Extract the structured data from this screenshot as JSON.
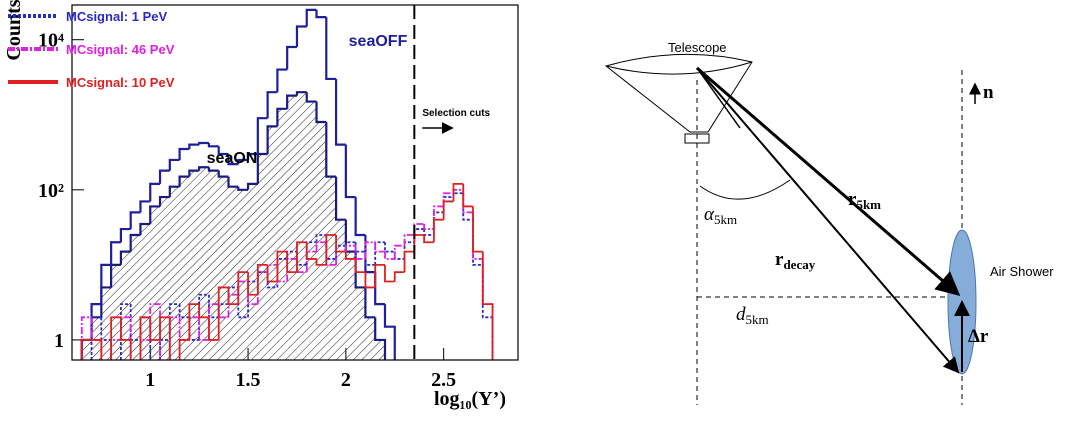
{
  "chart_data": {
    "type": "histogram",
    "xlabel": "log₁₀(Y’)",
    "ylabel": "Counts",
    "log_y": true,
    "xlim": [
      0.6,
      2.88
    ],
    "ylim": [
      0.54,
      29000
    ],
    "xticks": [
      1,
      1.5,
      2,
      2.5
    ],
    "yticks": [
      1,
      {
        "value": 100,
        "label": "10²"
      },
      {
        "value": 10000,
        "label": "10⁴"
      }
    ],
    "bins": [
      0.6,
      0.65,
      0.7,
      0.75,
      0.8,
      0.85,
      0.9,
      0.95,
      1,
      1.05,
      1.1,
      1.15,
      1.2,
      1.25,
      1.3,
      1.35,
      1.4,
      1.45,
      1.5,
      1.55,
      1.6,
      1.65,
      1.7,
      1.75,
      1.8,
      1.85,
      1.9,
      1.95,
      2,
      2.05,
      2.1,
      2.15,
      2.2,
      2.25,
      2.3,
      2.35,
      2.4,
      2.45,
      2.5,
      2.55,
      2.6,
      2.65,
      2.7,
      2.75,
      2.8,
      2.85
    ],
    "cut": {
      "x": 2.35,
      "label": "Selection cuts"
    },
    "series": [
      {
        "name": "seaON",
        "color": "#1a1a80",
        "hatched": true,
        "in_legend": false,
        "values": [
          null,
          1,
          2,
          5,
          10,
          15,
          25,
          35,
          60,
          80,
          110,
          150,
          180,
          200,
          180,
          150,
          110,
          100,
          120,
          300,
          700,
          1200,
          1800,
          2000,
          1500,
          800,
          150,
          40,
          15,
          5,
          2,
          1,
          null,
          null,
          null,
          null,
          null,
          null,
          null,
          null,
          null,
          null,
          null,
          null,
          null
        ]
      },
      {
        "name": "seaOFF",
        "color": "#1f1f9e",
        "in_legend": false,
        "values": [
          null,
          1,
          3,
          10,
          20,
          30,
          50,
          70,
          120,
          180,
          250,
          350,
          400,
          420,
          380,
          300,
          220,
          250,
          300,
          900,
          2000,
          4000,
          8000,
          15000,
          25000,
          20000,
          3000,
          400,
          80,
          25,
          8,
          3,
          1.5,
          null,
          null,
          null,
          null,
          null,
          null,
          null,
          null,
          null,
          null,
          null,
          null
        ]
      },
      {
        "name": "MCsignal: 1 PeV",
        "color": "#2a2ac8",
        "dash": "dotted",
        "in_legend": true,
        "values": [
          null,
          null,
          2,
          1,
          null,
          3,
          1,
          2,
          null,
          1,
          3,
          2,
          1,
          4,
          2,
          3,
          5,
          2,
          6,
          8,
          5,
          12,
          15,
          10,
          20,
          25,
          12,
          18,
          20,
          15,
          10,
          20,
          15,
          12,
          20,
          30,
          25,
          50,
          80,
          90,
          40,
          10,
          2,
          null,
          null
        ]
      },
      {
        "name": "MCsignal: 46  PeV",
        "color": "#e020e0",
        "dash": "dashdot",
        "in_legend": true,
        "values": [
          null,
          2,
          1,
          null,
          1,
          2,
          null,
          1,
          3,
          null,
          2,
          1,
          2,
          1,
          3,
          2,
          4,
          6,
          3,
          8,
          10,
          6,
          12,
          8,
          15,
          20,
          10,
          15,
          18,
          12,
          20,
          15,
          12,
          18,
          25,
          35,
          30,
          60,
          90,
          100,
          50,
          12,
          3,
          null,
          null
        ]
      },
      {
        "name": "MCsignal: 10 PeV",
        "color": "#e02020",
        "dash": "solid",
        "in_legend": true,
        "values": [
          null,
          1,
          1,
          null,
          2,
          1,
          null,
          2,
          1,
          2,
          null,
          1,
          3,
          2,
          1,
          5,
          3,
          8,
          4,
          10,
          6,
          15,
          8,
          20,
          12,
          10,
          25,
          15,
          12,
          8,
          5,
          10,
          6,
          8,
          15,
          25,
          20,
          40,
          70,
          120,
          60,
          15,
          3,
          null,
          null
        ]
      }
    ]
  },
  "diagram": {
    "telescope": "Telescope",
    "normal": "n",
    "r5km": {
      "label": "r",
      "subscript": "5km"
    },
    "rdecay": {
      "label": "r",
      "subscript": "decay"
    },
    "alpha": {
      "label": "α",
      "subscript": "5km"
    },
    "d5km": {
      "label": "d",
      "subscript": "5km"
    },
    "air_shower": "Air Shower",
    "delta_r": "Δr"
  }
}
